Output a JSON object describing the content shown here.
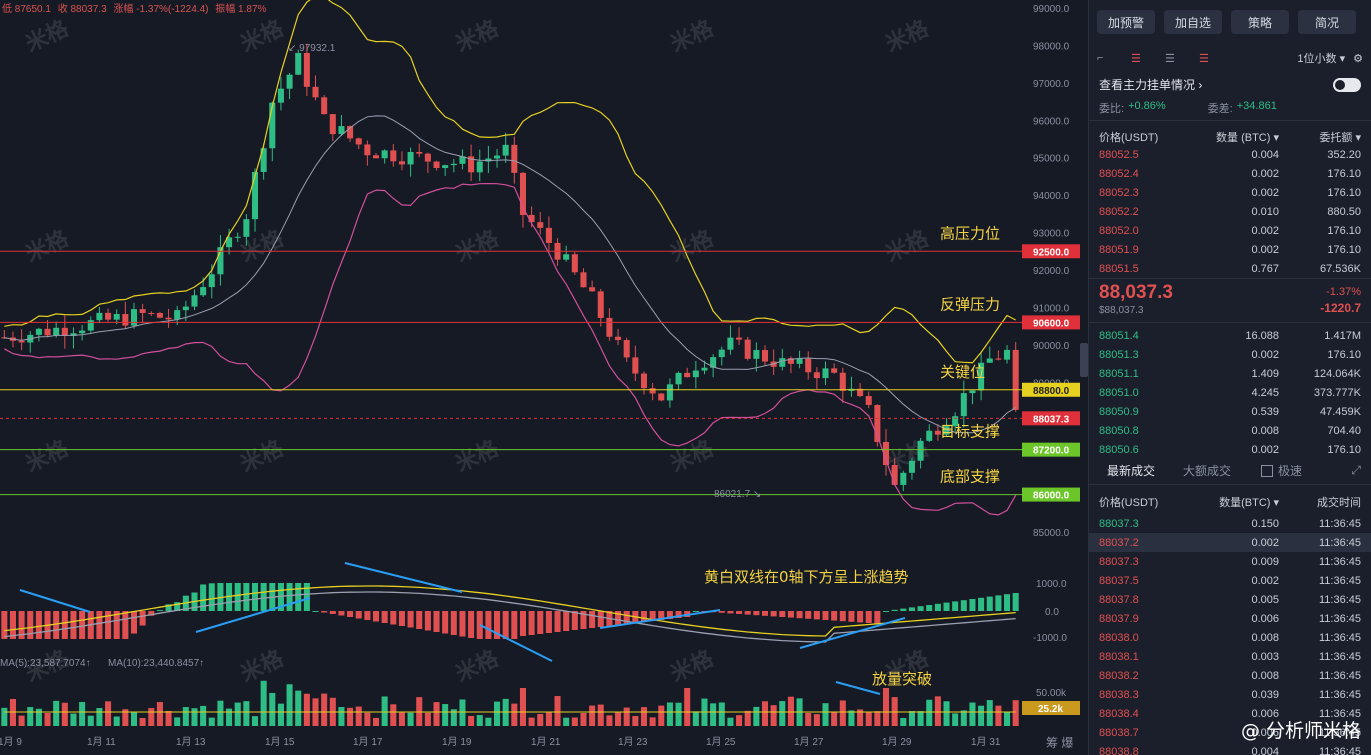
{
  "header": {
    "low": "低 87650.1",
    "close": "收 88037.3",
    "change": "涨幅 -1.37%(-1224.4)",
    "amplitude": "振幅 1.87%"
  },
  "price_axis": {
    "labels": [
      "99000.0",
      "98000.0",
      "97000.0",
      "96000.0",
      "95000.0",
      "94000.0",
      "93000.0",
      "92000.0",
      "91000.0",
      "90000.0",
      "89000.0",
      "85000.0"
    ]
  },
  "macd_axis": {
    "labels": [
      "1000.0",
      "0.0",
      "-1000.0"
    ]
  },
  "volume_axis": {
    "label": "50.00k",
    "current_tag": "25.2k"
  },
  "time_axis": {
    "labels": [
      "1月 9",
      "1月 11",
      "1月 13",
      "1月 15",
      "1月 17",
      "1月 19",
      "1月 21",
      "1月 23",
      "1月 25",
      "1月 27",
      "1月 29",
      "1月 31"
    ],
    "right_label": "筹 爆"
  },
  "levels": [
    {
      "tag": "92500.0",
      "label": "高压力位",
      "color": "#e0303a",
      "value": 92500
    },
    {
      "tag": "90600.0",
      "label": "反弹压力",
      "color": "#e0303a",
      "value": 90600
    },
    {
      "tag": "88800.0",
      "label": "关键位",
      "color": "#e6d020",
      "value": 88800
    },
    {
      "tag": "88037.3",
      "label": "",
      "color": "#e0303a",
      "value": 88037.3
    },
    {
      "tag": "87200.0",
      "label": "目标支撑",
      "color": "#6cc62a",
      "value": 87200
    },
    {
      "tag": "86000.0",
      "label": "底部支撑",
      "color": "#6cc62a",
      "value": 86000
    }
  ],
  "annotations": {
    "high_marker": "97932.1",
    "low_marker": "86021.7",
    "macd_note": "黄白双线在0轴下方呈上涨趋势",
    "volume_note": "放量突破",
    "ma_line": "MA(5):23,587.7074↑",
    "ma10_line": "MA(10):23,440.8457↑"
  },
  "watermark": "米格",
  "panel": {
    "buttons": [
      "加预警",
      "加自选",
      "策略",
      "简况"
    ],
    "decimal_select": "1位小数",
    "depth_title": "查看主力挂单情况",
    "ratio_label": "委比:",
    "ratio_value": "+0.86%",
    "diff_label": "委差:",
    "diff_value": "+34.861",
    "ob_headers": [
      "价格(USDT)",
      "数量 (BTC)",
      "委托额"
    ],
    "asks": [
      {
        "p": "88052.5",
        "q": "0.004",
        "a": "352.20"
      },
      {
        "p": "88052.4",
        "q": "0.002",
        "a": "176.10"
      },
      {
        "p": "88052.3",
        "q": "0.002",
        "a": "176.10"
      },
      {
        "p": "88052.2",
        "q": "0.010",
        "a": "880.50"
      },
      {
        "p": "88052.0",
        "q": "0.002",
        "a": "176.10"
      },
      {
        "p": "88051.9",
        "q": "0.002",
        "a": "176.10"
      },
      {
        "p": "88051.5",
        "q": "0.767",
        "a": "67.536K"
      }
    ],
    "mid_price": "88,037.3",
    "mid_usd": "$88,037.3",
    "mid_change_pct": "-1.37%",
    "mid_change": "-1220.7",
    "bids": [
      {
        "p": "88051.4",
        "q": "16.088",
        "a": "1.417M"
      },
      {
        "p": "88051.3",
        "q": "0.002",
        "a": "176.10"
      },
      {
        "p": "88051.1",
        "q": "1.409",
        "a": "124.064K"
      },
      {
        "p": "88051.0",
        "q": "4.245",
        "a": "373.777K"
      },
      {
        "p": "88050.9",
        "q": "0.539",
        "a": "47.459K"
      },
      {
        "p": "88050.8",
        "q": "0.008",
        "a": "704.40"
      },
      {
        "p": "88050.6",
        "q": "0.002",
        "a": "176.10"
      }
    ],
    "tab_latest": "最新成交",
    "tab_large": "大额成交",
    "tab_fast": "极速",
    "tr_headers": [
      "价格(USDT)",
      "数量(BTC)",
      "成交时间"
    ],
    "trades": [
      {
        "p": "88037.3",
        "q": "0.150",
        "t": "11:36:45",
        "s": "g"
      },
      {
        "p": "88037.2",
        "q": "0.002",
        "t": "11:36:45",
        "s": "r"
      },
      {
        "p": "88037.3",
        "q": "0.009",
        "t": "11:36:45",
        "s": "r"
      },
      {
        "p": "88037.5",
        "q": "0.002",
        "t": "11:36:45",
        "s": "r"
      },
      {
        "p": "88037.8",
        "q": "0.005",
        "t": "11:36:45",
        "s": "r"
      },
      {
        "p": "88037.9",
        "q": "0.006",
        "t": "11:36:45",
        "s": "r"
      },
      {
        "p": "88038.0",
        "q": "0.008",
        "t": "11:36:45",
        "s": "r"
      },
      {
        "p": "88038.1",
        "q": "0.003",
        "t": "11:36:45",
        "s": "r"
      },
      {
        "p": "88038.2",
        "q": "0.008",
        "t": "11:36:45",
        "s": "r"
      },
      {
        "p": "88038.3",
        "q": "0.039",
        "t": "11:36:45",
        "s": "r"
      },
      {
        "p": "88038.4",
        "q": "0.006",
        "t": "11:36:45",
        "s": "r"
      },
      {
        "p": "88038.7",
        "q": "0.006",
        "t": "11:36:45",
        "s": "r"
      },
      {
        "p": "88038.8",
        "q": "0.004",
        "t": "11:36:45",
        "s": "r"
      }
    ],
    "author_tag": "@ 分析师米格"
  }
}
